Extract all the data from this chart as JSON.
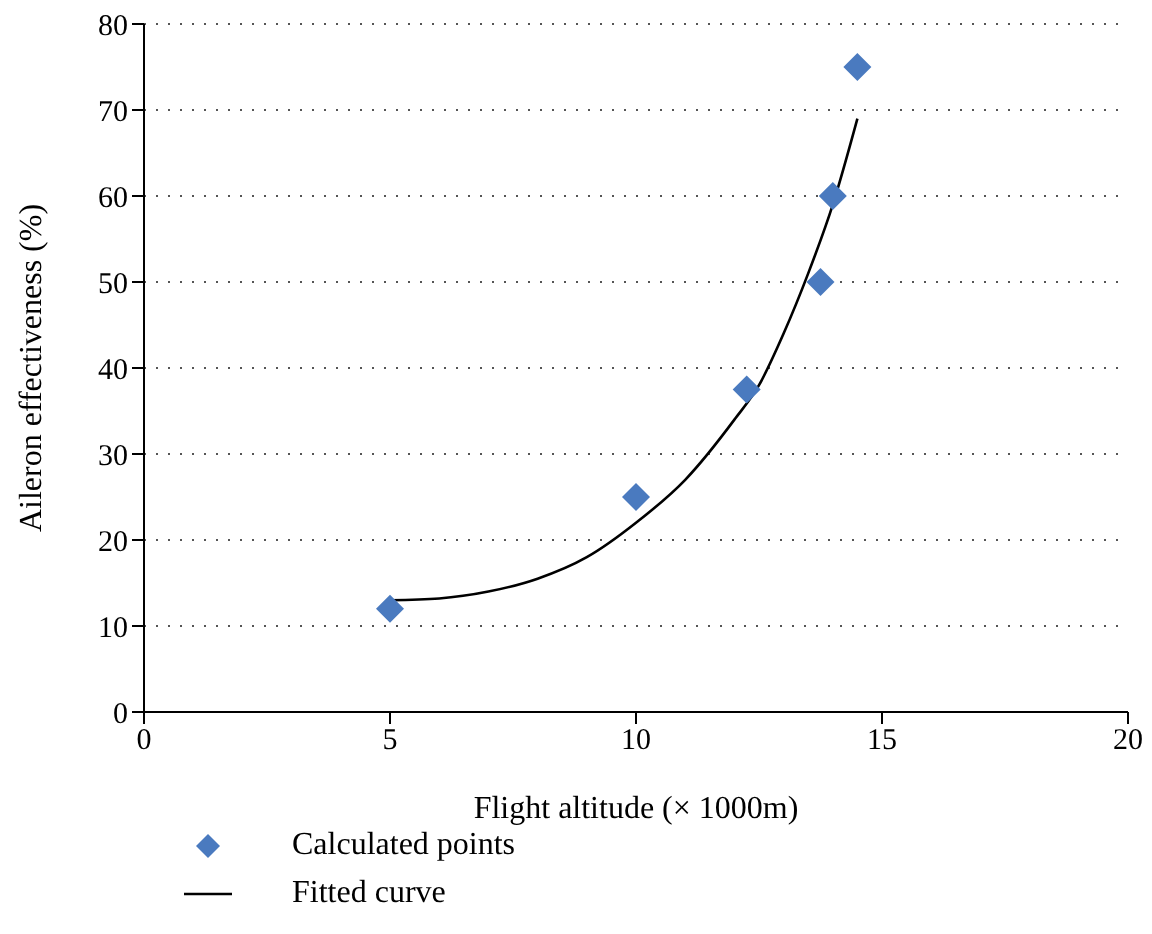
{
  "chart_data": {
    "type": "scatter",
    "xlabel": "Flight altitude (× 1000m)",
    "ylabel": "Aileron effectiveness (%)",
    "xlim": [
      0,
      20
    ],
    "xticks": [
      0,
      5,
      10,
      15,
      20
    ],
    "ylim": [
      0,
      80
    ],
    "yticks": [
      0,
      10,
      20,
      30,
      40,
      50,
      60,
      70,
      80
    ],
    "grid": "y",
    "legend": "bottom",
    "series": [
      {
        "name": "Calculated points",
        "marker": "diamond",
        "color": "#4a7abf",
        "x": [
          5,
          10,
          12.25,
          13.75,
          14,
          14.5
        ],
        "values": [
          12,
          25,
          37.5,
          50,
          60,
          75
        ]
      },
      {
        "name": "Fitted curve",
        "type": "line",
        "marker": "none",
        "color": "#000000",
        "line_style": "solid",
        "x": [
          5,
          6,
          7,
          8,
          9,
          10,
          11,
          12,
          12.5,
          13,
          13.5,
          14,
          14.5
        ],
        "values": [
          13,
          13.2,
          14,
          15.5,
          18,
          22,
          27,
          34,
          38,
          44,
          51,
          59,
          69
        ]
      }
    ]
  }
}
